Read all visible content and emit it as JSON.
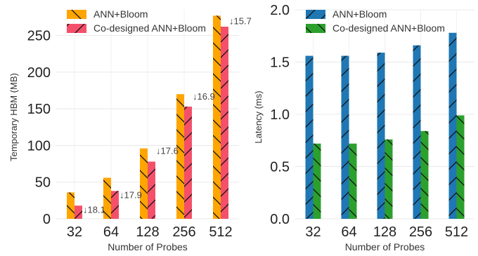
{
  "chart_data": [
    {
      "type": "bar",
      "title": "",
      "xlabel": "Number of Probes",
      "ylabel": "Temporary HBM (MB)",
      "categories": [
        "32",
        "64",
        "128",
        "256",
        "512"
      ],
      "ylim": [
        0,
        285
      ],
      "yticks": [
        0,
        50,
        100,
        150,
        200,
        250
      ],
      "ytick_labels": [
        "0",
        "50",
        "100",
        "150",
        "200",
        "250"
      ],
      "grid": true,
      "legend_position": "top-left",
      "series": [
        {
          "name": "ANN+Bloom",
          "values": [
            36,
            56,
            96,
            170,
            277
          ],
          "color": "#FFA500",
          "hatch": "backslash"
        },
        {
          "name": "Co-designed ANN+Bloom",
          "values": [
            18,
            38,
            78,
            153,
            262
          ],
          "color": "#F4506A",
          "hatch": "slash"
        }
      ],
      "annotations": [
        "↓18.1",
        "↓17.9",
        "↓17.6",
        "↓16.9",
        "↓15.7"
      ]
    },
    {
      "type": "bar",
      "title": "",
      "xlabel": "Number of Probes",
      "ylabel": "Latency (ms)",
      "categories": [
        "32",
        "64",
        "128",
        "256",
        "512"
      ],
      "ylim": [
        0,
        2.0
      ],
      "yticks": [
        0,
        0.5,
        1.0,
        1.5,
        2.0
      ],
      "ytick_labels": [
        "0.0",
        "0.5",
        "1.0",
        "1.5",
        "2.0"
      ],
      "grid": true,
      "legend_position": "top-left",
      "series": [
        {
          "name": "ANN+Bloom",
          "values": [
            1.56,
            1.56,
            1.59,
            1.66,
            1.78
          ],
          "color": "#1F77B4",
          "hatch": "slash"
        },
        {
          "name": "Co-designed ANN+Bloom",
          "values": [
            0.72,
            0.72,
            0.76,
            0.84,
            0.99
          ],
          "color": "#2CA02C",
          "hatch": "backslash"
        }
      ]
    }
  ]
}
